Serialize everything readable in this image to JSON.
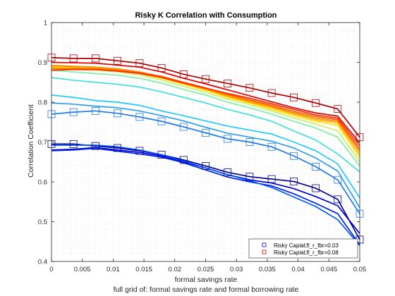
{
  "chart_data": {
    "type": "line",
    "title": "Risky K Correlation with Consumption",
    "xlabel": "formal savings rate",
    "subxlabel": "full grid of: formal savings rate and formal borrowing rate",
    "ylabel": "Correlation Coefficient",
    "xlim": [
      0,
      0.05
    ],
    "ylim": [
      0.4,
      1
    ],
    "xticks": [
      "0",
      "0.005",
      "0.01",
      "0.015",
      "0.02",
      "0.025",
      "0.03",
      "0.035",
      "0.04",
      "0.045",
      "0.05"
    ],
    "yticks": [
      "0.4",
      "0.5",
      "0.6",
      "0.7",
      "0.8",
      "0.9",
      "1"
    ],
    "grid": "on (minor, dotted)",
    "legend_location": "bottom-right",
    "legend": [
      {
        "label": "Risky Capial;fl_r_fbr=0.03",
        "color": "#0000bb",
        "marker": "square"
      },
      {
        "label": "Risky Capial;fl_r_fbr=0.08",
        "color": "#cc0000",
        "marker": "square"
      }
    ],
    "x": [
      0,
      0.00357,
      0.00714,
      0.01071,
      0.01429,
      0.01786,
      0.02143,
      0.025,
      0.02857,
      0.03214,
      0.03571,
      0.03929,
      0.04286,
      0.04643,
      0.05
    ],
    "marker_series": [
      0,
      4,
      16
    ],
    "series": [
      {
        "color": "#00008f",
        "values": [
          0.695,
          0.695,
          0.69,
          0.685,
          0.678,
          0.668,
          0.655,
          0.64,
          0.624,
          0.613,
          0.607,
          0.601,
          0.584,
          0.556,
          0.455
        ]
      },
      {
        "color": "#0000d0",
        "values": [
          0.68,
          0.682,
          0.686,
          0.68,
          0.674,
          0.665,
          0.65,
          0.635,
          0.618,
          0.605,
          0.597,
          0.583,
          0.563,
          0.54,
          0.47
        ]
      },
      {
        "color": "#0022ee",
        "values": [
          0.678,
          0.68,
          0.684,
          0.677,
          0.67,
          0.662,
          0.648,
          0.63,
          0.612,
          0.6,
          0.59,
          0.57,
          0.546,
          0.52,
          0.442
        ]
      },
      {
        "color": "#0055ff",
        "values": [
          0.692,
          0.692,
          0.692,
          0.688,
          0.68,
          0.668,
          0.652,
          0.635,
          0.618,
          0.603,
          0.586,
          0.562,
          0.538,
          0.505,
          0.44
        ]
      },
      {
        "color": "#1e78e8",
        "values": [
          0.77,
          0.775,
          0.778,
          0.772,
          0.763,
          0.752,
          0.738,
          0.723,
          0.708,
          0.7,
          0.688,
          0.665,
          0.638,
          0.605,
          0.52
        ]
      },
      {
        "color": "#2c9cf0",
        "values": [
          0.798,
          0.795,
          0.79,
          0.786,
          0.778,
          0.766,
          0.753,
          0.737,
          0.722,
          0.712,
          0.702,
          0.685,
          0.66,
          0.627,
          0.535
        ]
      },
      {
        "color": "#1ec8ff",
        "values": [
          0.818,
          0.812,
          0.804,
          0.8,
          0.792,
          0.778,
          0.766,
          0.753,
          0.74,
          0.73,
          0.72,
          0.7,
          0.678,
          0.645,
          0.56
        ]
      },
      {
        "color": "#3fe0d8",
        "values": [
          0.862,
          0.855,
          0.85,
          0.845,
          0.838,
          0.826,
          0.812,
          0.798,
          0.782,
          0.768,
          0.752,
          0.728,
          0.705,
          0.67,
          0.625
        ]
      },
      {
        "color": "#7df0a0",
        "values": [
          0.88,
          0.876,
          0.872,
          0.868,
          0.86,
          0.848,
          0.832,
          0.818,
          0.8,
          0.786,
          0.77,
          0.752,
          0.735,
          0.712,
          0.64
        ]
      },
      {
        "color": "#c8f060",
        "values": [
          0.885,
          0.882,
          0.88,
          0.876,
          0.868,
          0.856,
          0.84,
          0.825,
          0.808,
          0.794,
          0.778,
          0.76,
          0.745,
          0.728,
          0.65
        ]
      },
      {
        "color": "#ffe000",
        "values": [
          0.888,
          0.886,
          0.884,
          0.88,
          0.872,
          0.86,
          0.845,
          0.83,
          0.812,
          0.798,
          0.782,
          0.766,
          0.752,
          0.742,
          0.66
        ]
      },
      {
        "color": "#ffb000",
        "values": [
          0.89,
          0.888,
          0.886,
          0.882,
          0.874,
          0.862,
          0.847,
          0.832,
          0.815,
          0.8,
          0.786,
          0.77,
          0.756,
          0.748,
          0.668
        ]
      },
      {
        "color": "#ff8800",
        "values": [
          0.892,
          0.89,
          0.888,
          0.884,
          0.876,
          0.864,
          0.849,
          0.834,
          0.817,
          0.803,
          0.789,
          0.773,
          0.76,
          0.752,
          0.676
        ]
      },
      {
        "color": "#ff5a00",
        "values": [
          0.884,
          0.884,
          0.883,
          0.88,
          0.874,
          0.865,
          0.85,
          0.836,
          0.82,
          0.806,
          0.792,
          0.777,
          0.764,
          0.756,
          0.682
        ]
      },
      {
        "color": "#ff2a00",
        "values": [
          0.88,
          0.882,
          0.882,
          0.878,
          0.872,
          0.862,
          0.848,
          0.835,
          0.822,
          0.81,
          0.796,
          0.782,
          0.768,
          0.76,
          0.69
        ]
      },
      {
        "color": "#e00000",
        "values": [
          0.9,
          0.899,
          0.898,
          0.893,
          0.888,
          0.876,
          0.86,
          0.846,
          0.831,
          0.816,
          0.801,
          0.786,
          0.773,
          0.765,
          0.698
        ]
      },
      {
        "color": "#b00000",
        "values": [
          0.912,
          0.91,
          0.91,
          0.904,
          0.898,
          0.886,
          0.87,
          0.858,
          0.847,
          0.836,
          0.823,
          0.812,
          0.798,
          0.783,
          0.712
        ]
      }
    ]
  }
}
